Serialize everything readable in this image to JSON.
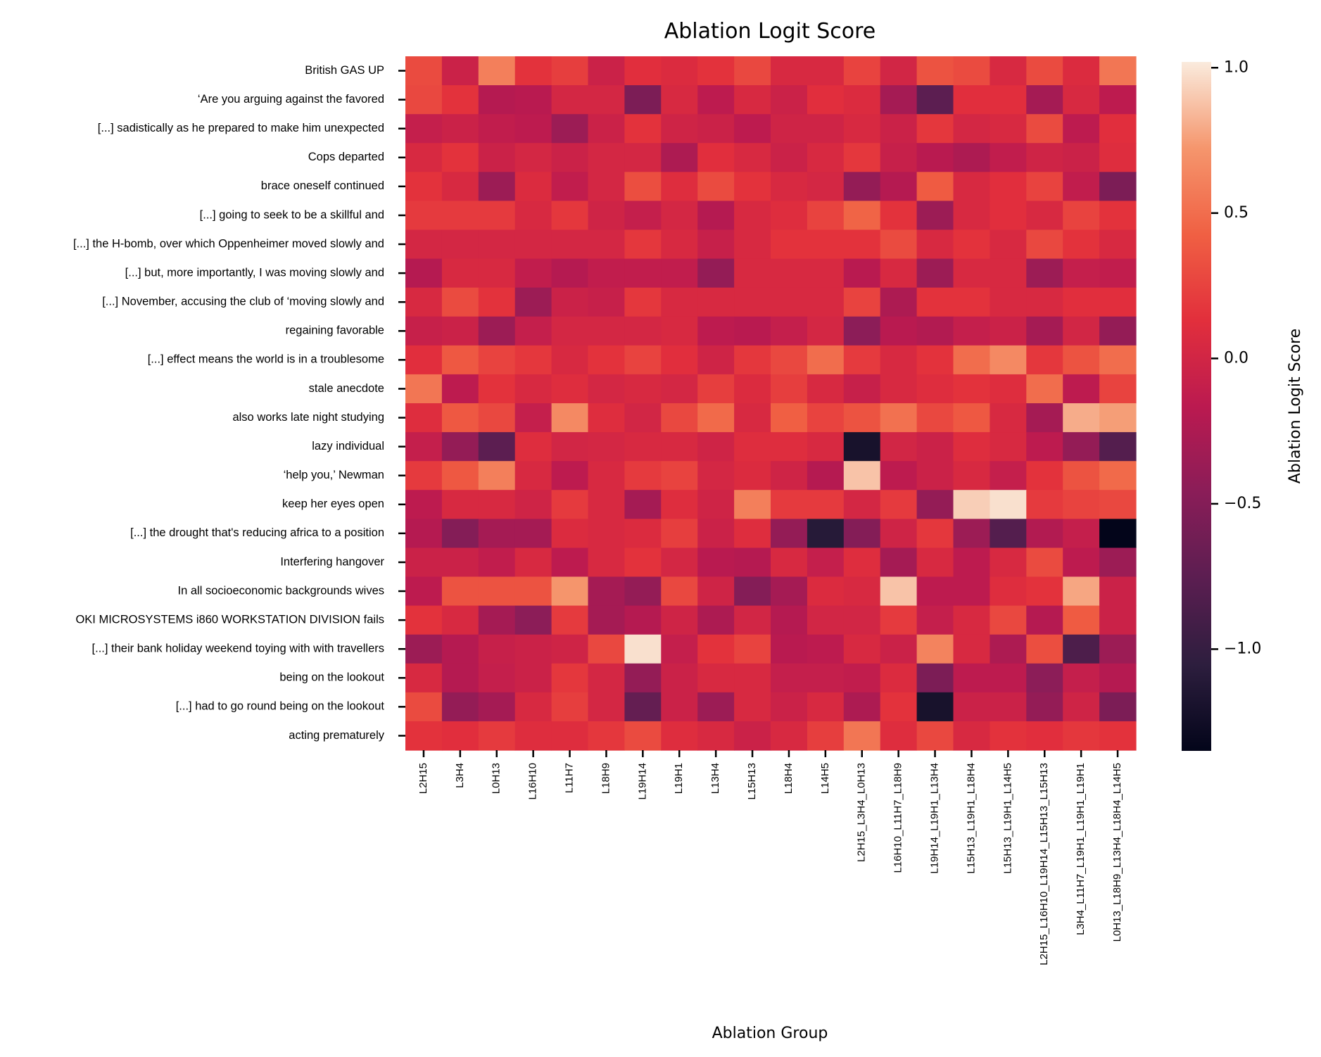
{
  "chart_data": {
    "type": "heatmap",
    "title": "Ablation Logit Score",
    "xlabel": "Ablation Group",
    "ylabel": "",
    "colorbar_label": "Ablation Logit Score",
    "colormap": "rocket",
    "vmin": -1.35,
    "vmax": 1.02,
    "colorbar_ticks": [
      1.0,
      0.5,
      0.0,
      -0.5,
      -1.0
    ],
    "colorbar_tick_labels": [
      "1.0",
      "0.5",
      "0.0",
      "−0.5",
      "−1.0"
    ],
    "x_categories": [
      "L2H15",
      "L3H4",
      "L0H13",
      "L16H10",
      "L11H7",
      "L18H9",
      "L19H14",
      "L19H1",
      "L13H4",
      "L15H13",
      "L18H4",
      "L14H5",
      "L2H15_L3H4_L0H13",
      "L16H10_L11H7_L18H9",
      "L19H14_L19H1_L13H4",
      "L15H13_L19H1_L18H4",
      "L15H13_L19H1_L14H5",
      "L2H15_L16H10_L19H14_L15H13_L15H13",
      "L3H4_L11H7_L19H1_L19H1_L19H1",
      "L0H13_L18H9_L13H4_L18H4_L14H5"
    ],
    "y_categories": [
      "British GAS  UP",
      "‘Are you arguing against the  favored",
      "[...] sadistically as he prepared to make him  unexpected",
      "Cops  departed",
      "brace oneself  continued",
      "[...] going to seek to be a skillful  and",
      "[...] the H-bomb, over which Oppenheimer moved slowly  and",
      "[...] but, more importantly, I was moving slowly  and",
      "[...] November, accusing the club of ‘moving slowly  and",
      "regaining  favorable",
      "[...] effect means the world is in a  troublesome",
      "stale  anecdote",
      "also works late night  studying",
      "lazy  individual",
      "‘help you,’  Newman",
      "keep her eyes  open",
      "[...] the drought that's reducing africa to a  position",
      "Interfering  hangover",
      "In all socioeconomic backgrounds  wives",
      "OKI MICROSYSTEMS i860 WORKSTATION DIVISION  fails",
      "[...] their bank holiday weekend toying with with  travellers",
      "being on the  lookout",
      "[...] had to go round being on the  lookout",
      "acting  prematurely"
    ],
    "values": [
      [
        0.3,
        -0.05,
        0.6,
        0.15,
        0.22,
        -0.05,
        0.12,
        0.08,
        0.15,
        0.28,
        0.05,
        0.05,
        0.25,
        0.0,
        0.35,
        0.3,
        0.05,
        0.3,
        0.08,
        0.55
      ],
      [
        0.28,
        0.15,
        -0.2,
        -0.18,
        0.02,
        0.02,
        -0.55,
        0.05,
        -0.15,
        0.05,
        -0.05,
        0.12,
        0.08,
        -0.3,
        -0.75,
        0.12,
        0.12,
        -0.3,
        0.05,
        -0.15
      ],
      [
        -0.1,
        -0.05,
        -0.12,
        -0.15,
        -0.35,
        -0.05,
        0.15,
        -0.02,
        -0.05,
        -0.15,
        -0.02,
        -0.02,
        0.05,
        -0.05,
        0.18,
        0.02,
        0.05,
        0.3,
        -0.15,
        0.12
      ],
      [
        0.05,
        0.15,
        -0.05,
        0.02,
        -0.05,
        0.02,
        0.02,
        -0.25,
        0.12,
        0.05,
        -0.05,
        0.05,
        0.18,
        -0.08,
        -0.18,
        -0.25,
        -0.12,
        -0.02,
        -0.05,
        0.1
      ],
      [
        0.15,
        0.05,
        -0.35,
        0.08,
        -0.12,
        0.02,
        0.32,
        0.1,
        0.3,
        0.15,
        0.05,
        0.02,
        -0.4,
        -0.2,
        0.4,
        0.05,
        0.12,
        0.25,
        -0.12,
        -0.55
      ],
      [
        0.2,
        0.2,
        0.2,
        0.05,
        0.18,
        -0.02,
        -0.1,
        0.02,
        -0.2,
        0.05,
        0.1,
        0.25,
        0.45,
        0.15,
        -0.35,
        0.05,
        0.12,
        0.05,
        0.25,
        0.15
      ],
      [
        0.02,
        0.02,
        0.02,
        0.02,
        0.02,
        0.02,
        0.18,
        0.05,
        -0.08,
        0.05,
        0.15,
        0.15,
        0.15,
        0.3,
        0.05,
        0.15,
        0.05,
        0.28,
        0.15,
        0.05
      ],
      [
        -0.2,
        0.05,
        0.05,
        -0.12,
        -0.2,
        -0.12,
        -0.12,
        -0.12,
        -0.4,
        0.05,
        0.05,
        0.05,
        -0.18,
        0.05,
        -0.35,
        0.05,
        0.05,
        -0.35,
        -0.1,
        -0.12
      ],
      [
        0.05,
        0.3,
        0.15,
        -0.35,
        -0.05,
        -0.08,
        0.18,
        0.05,
        0.05,
        0.05,
        0.05,
        0.05,
        0.25,
        -0.25,
        0.15,
        0.15,
        0.05,
        0.05,
        0.12,
        0.12
      ],
      [
        -0.08,
        -0.05,
        -0.35,
        -0.1,
        0.02,
        0.02,
        0.02,
        0.05,
        -0.15,
        -0.18,
        -0.1,
        0.02,
        -0.45,
        -0.18,
        -0.22,
        -0.1,
        -0.05,
        -0.3,
        0.0,
        -0.4
      ],
      [
        0.12,
        0.38,
        0.25,
        0.18,
        0.05,
        0.15,
        0.25,
        0.12,
        -0.02,
        0.18,
        0.28,
        0.5,
        0.2,
        0.05,
        0.15,
        0.5,
        0.65,
        0.18,
        0.35,
        0.5
      ],
      [
        0.55,
        -0.15,
        0.15,
        0.05,
        0.1,
        0.02,
        0.05,
        0.02,
        0.22,
        0.08,
        0.22,
        0.05,
        -0.08,
        0.05,
        0.1,
        0.15,
        0.1,
        0.5,
        -0.15,
        0.25
      ],
      [
        0.1,
        0.38,
        0.28,
        -0.1,
        0.65,
        0.1,
        0.0,
        0.28,
        0.48,
        0.05,
        0.42,
        0.25,
        0.35,
        0.52,
        0.28,
        0.38,
        0.05,
        -0.3,
        0.8,
        0.75
      ],
      [
        -0.1,
        -0.4,
        -0.75,
        0.1,
        0.0,
        0.02,
        0.05,
        0.05,
        -0.02,
        0.1,
        0.1,
        0.05,
        -1.2,
        0.0,
        -0.05,
        0.1,
        0.05,
        -0.15,
        -0.4,
        -0.8
      ],
      [
        0.2,
        0.38,
        0.6,
        0.05,
        -0.15,
        0.05,
        0.2,
        0.25,
        0.02,
        0.08,
        -0.02,
        -0.2,
        0.88,
        -0.15,
        -0.05,
        0.05,
        -0.1,
        0.15,
        0.35,
        0.48
      ],
      [
        -0.15,
        0.05,
        0.05,
        -0.02,
        0.2,
        0.05,
        -0.3,
        0.1,
        -0.02,
        0.6,
        0.2,
        0.2,
        0.02,
        0.2,
        -0.4,
        0.92,
        0.98,
        0.2,
        0.25,
        0.28
      ],
      [
        -0.2,
        -0.5,
        -0.3,
        -0.3,
        0.08,
        0.05,
        0.08,
        0.22,
        -0.05,
        0.1,
        -0.4,
        -1.1,
        -0.5,
        -0.02,
        0.18,
        -0.35,
        -0.8,
        -0.22,
        -0.1,
        -1.35
      ],
      [
        -0.05,
        -0.05,
        -0.12,
        0.05,
        -0.15,
        0.05,
        0.15,
        0.02,
        -0.18,
        -0.2,
        0.05,
        -0.1,
        0.1,
        -0.3,
        0.05,
        -0.15,
        0.05,
        0.3,
        -0.15,
        -0.35
      ],
      [
        -0.15,
        0.35,
        0.35,
        0.35,
        0.72,
        -0.3,
        -0.4,
        0.28,
        -0.02,
        -0.5,
        -0.3,
        0.08,
        0.05,
        0.88,
        -0.15,
        -0.15,
        0.1,
        0.15,
        0.78,
        -0.05
      ],
      [
        0.15,
        0.05,
        -0.3,
        -0.45,
        0.2,
        -0.3,
        -0.2,
        -0.02,
        -0.25,
        0.0,
        -0.2,
        0.0,
        0.0,
        0.2,
        -0.1,
        0.05,
        0.28,
        -0.2,
        0.4,
        -0.05
      ],
      [
        -0.35,
        -0.2,
        -0.08,
        -0.05,
        -0.02,
        0.28,
        0.98,
        -0.1,
        0.15,
        0.25,
        -0.18,
        -0.15,
        0.05,
        -0.05,
        0.62,
        0.05,
        -0.25,
        0.32,
        -0.85,
        -0.35
      ],
      [
        0.05,
        -0.2,
        -0.1,
        -0.05,
        0.18,
        0.02,
        -0.4,
        -0.05,
        0.05,
        0.05,
        -0.1,
        -0.1,
        -0.12,
        0.08,
        -0.55,
        -0.15,
        -0.15,
        -0.45,
        -0.1,
        -0.2
      ],
      [
        0.3,
        -0.4,
        -0.3,
        0.05,
        0.22,
        0.02,
        -0.7,
        -0.05,
        -0.35,
        0.05,
        -0.05,
        0.05,
        -0.25,
        0.15,
        -1.2,
        -0.05,
        -0.05,
        -0.4,
        -0.02,
        -0.55
      ],
      [
        0.15,
        0.12,
        0.2,
        0.1,
        0.1,
        0.18,
        0.3,
        0.1,
        0.05,
        -0.05,
        0.05,
        0.22,
        0.55,
        0.1,
        0.28,
        0.05,
        0.15,
        0.12,
        0.18,
        0.15
      ]
    ]
  }
}
